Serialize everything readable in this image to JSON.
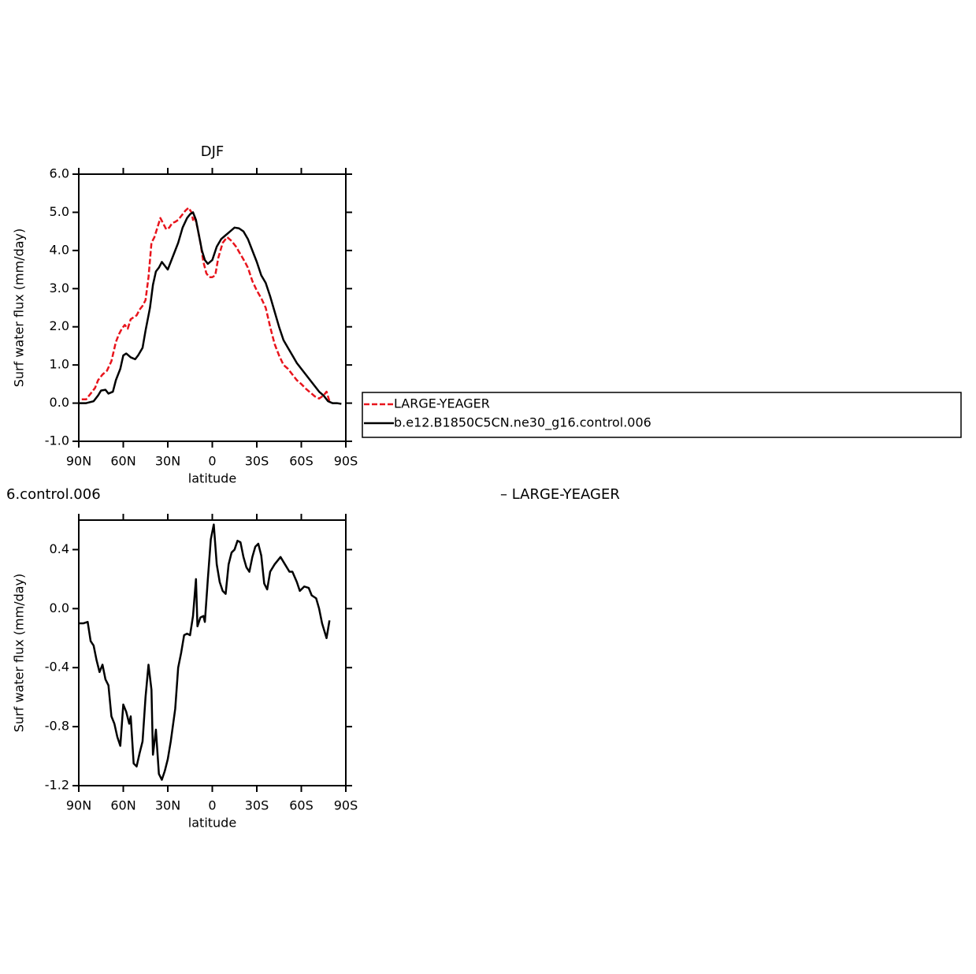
{
  "chart_data": [
    {
      "type": "line",
      "title": "DJF",
      "xlabel": "latitude",
      "ylabel": "Surf water flux (mm/day)",
      "xlim": [
        90,
        -90
      ],
      "ylim": [
        -1,
        6
      ],
      "xticks": [
        {
          "value": 90,
          "label": "90N"
        },
        {
          "value": 60,
          "label": "60N"
        },
        {
          "value": 30,
          "label": "30N"
        },
        0,
        {
          "value": -30,
          "label": "30S"
        },
        {
          "value": -60,
          "label": "60S"
        },
        {
          "value": -90,
          "label": "90S"
        }
      ],
      "yticks": [
        {
          "value": -1,
          "label": "-1.0"
        },
        {
          "value": 0,
          "label": "0.0"
        },
        {
          "value": 1,
          "label": "1.0"
        },
        {
          "value": 2,
          "label": "2.0"
        },
        {
          "value": 3,
          "label": "3.0"
        },
        {
          "value": 4,
          "label": "4.0"
        },
        {
          "value": 5,
          "label": "5.0"
        },
        {
          "value": 6,
          "label": "6.0"
        }
      ],
      "legend": "right",
      "series": [
        {
          "name": "LARGE-YEAGER",
          "color": "#e8141c",
          "dash": true,
          "x": [
            88,
            85,
            82,
            79,
            77,
            74,
            71,
            68,
            65,
            63,
            61,
            59,
            57,
            55,
            53,
            51,
            49,
            47,
            45,
            43,
            41,
            39,
            37,
            35,
            33,
            31,
            29,
            27,
            25,
            23,
            20,
            18,
            16,
            14,
            13,
            12,
            10,
            8,
            6,
            4,
            2,
            0,
            -2,
            -4,
            -7,
            -10,
            -13,
            -16,
            -19,
            -22,
            -24,
            -27,
            -30,
            -33,
            -36,
            -39,
            -42,
            -45,
            -48,
            -51,
            -54,
            -57,
            -60,
            -63,
            -66,
            -69,
            -72,
            -75,
            -77,
            -79
          ],
          "values": [
            0.1,
            0.1,
            0.25,
            0.4,
            0.6,
            0.75,
            0.85,
            1.1,
            1.6,
            1.8,
            1.95,
            2.05,
            1.95,
            2.2,
            2.25,
            2.3,
            2.45,
            2.55,
            2.7,
            3.3,
            4.2,
            4.35,
            4.6,
            4.85,
            4.7,
            4.55,
            4.6,
            4.72,
            4.75,
            4.8,
            4.95,
            5.05,
            5.12,
            5.0,
            4.8,
            4.9,
            4.6,
            4.2,
            3.7,
            3.4,
            3.3,
            3.3,
            3.35,
            3.8,
            4.2,
            4.35,
            4.25,
            4.1,
            3.9,
            3.7,
            3.55,
            3.2,
            2.95,
            2.75,
            2.5,
            2.0,
            1.55,
            1.25,
            1.0,
            0.9,
            0.75,
            0.6,
            0.5,
            0.38,
            0.28,
            0.18,
            0.12,
            0.2,
            0.3,
            0.05
          ]
        },
        {
          "name": "b.e12.B1850C5CN.ne30_g16.control.006",
          "color": "#000000",
          "dash": false,
          "x": [
            90,
            85,
            80,
            77,
            75,
            72,
            70,
            67,
            65,
            62,
            60,
            58,
            55,
            52,
            50,
            47,
            45,
            42,
            40,
            38,
            36,
            34,
            32,
            30,
            28,
            25,
            23,
            20,
            17,
            15,
            13,
            11,
            9,
            7,
            5,
            3,
            0,
            -3,
            -6,
            -9,
            -12,
            -15,
            -18,
            -21,
            -24,
            -27,
            -30,
            -33,
            -36,
            -39,
            -42,
            -45,
            -48,
            -51,
            -54,
            -57,
            -60,
            -63,
            -66,
            -69,
            -72,
            -75,
            -78,
            -81,
            -84,
            -87
          ],
          "values": [
            0,
            0,
            0.05,
            0.2,
            0.33,
            0.35,
            0.25,
            0.3,
            0.6,
            0.9,
            1.25,
            1.3,
            1.2,
            1.15,
            1.25,
            1.45,
            1.9,
            2.5,
            3.1,
            3.45,
            3.55,
            3.7,
            3.6,
            3.5,
            3.7,
            4.0,
            4.2,
            4.6,
            4.85,
            4.95,
            5.0,
            4.8,
            4.4,
            4.0,
            3.75,
            3.65,
            3.75,
            4.1,
            4.3,
            4.4,
            4.5,
            4.6,
            4.58,
            4.5,
            4.3,
            4.0,
            3.7,
            3.35,
            3.15,
            2.8,
            2.4,
            2.0,
            1.65,
            1.45,
            1.25,
            1.05,
            0.9,
            0.75,
            0.6,
            0.45,
            0.3,
            0.2,
            0.05,
            0,
            0,
            -0.02
          ]
        }
      ]
    },
    {
      "type": "line",
      "title_parts": [
        "6.control.006",
        "– LARGE-YEAGER"
      ],
      "xlabel": "latitude",
      "ylabel": "Surf water flux (mm/day)",
      "xlim": [
        90,
        -90
      ],
      "ylim": [
        -1.2,
        0.6
      ],
      "xticks": [
        {
          "value": 90,
          "label": "90N"
        },
        {
          "value": 60,
          "label": "60N"
        },
        {
          "value": 30,
          "label": "30N"
        },
        0,
        {
          "value": -30,
          "label": "30S"
        },
        {
          "value": -60,
          "label": "60S"
        },
        {
          "value": -90,
          "label": "90S"
        }
      ],
      "yticks": [
        -1.2,
        -0.8,
        -0.4,
        {
          "value": 0,
          "label": "0.0"
        },
        0.4
      ],
      "series": [
        {
          "color": "#000000",
          "dash": false,
          "x": [
            90,
            87,
            84,
            82,
            80,
            78,
            76,
            74,
            72,
            70,
            68,
            66,
            64,
            62,
            60,
            58,
            56,
            55,
            53,
            51,
            49,
            47,
            45,
            43,
            41,
            40,
            38,
            36,
            34,
            32,
            30,
            28,
            25,
            23,
            21,
            19,
            17,
            15,
            13,
            11,
            10,
            8,
            6,
            5,
            3,
            1,
            -1,
            -3,
            -5,
            -7,
            -9,
            -11,
            -13,
            -15,
            -17,
            -19,
            -21,
            -23,
            -25,
            -27,
            -29,
            -31,
            -33,
            -35,
            -37,
            -39,
            -42,
            -46,
            -49,
            -52,
            -54,
            -57,
            -59,
            -62,
            -65,
            -67,
            -70,
            -72,
            -74,
            -77,
            -79
          ],
          "values": [
            -0.1,
            -0.1,
            -0.09,
            -0.22,
            -0.25,
            -0.35,
            -0.43,
            -0.38,
            -0.48,
            -0.52,
            -0.73,
            -0.78,
            -0.87,
            -0.93,
            -0.65,
            -0.7,
            -0.78,
            -0.73,
            -1.05,
            -1.07,
            -0.98,
            -0.9,
            -0.6,
            -0.38,
            -0.55,
            -0.99,
            -0.82,
            -1.12,
            -1.16,
            -1.1,
            -1.02,
            -0.9,
            -0.68,
            -0.4,
            -0.3,
            -0.18,
            -0.17,
            -0.18,
            -0.05,
            0.2,
            -0.12,
            -0.06,
            -0.05,
            -0.09,
            0.2,
            0.47,
            0.57,
            0.3,
            0.18,
            0.12,
            0.1,
            0.3,
            0.38,
            0.4,
            0.46,
            0.45,
            0.35,
            0.28,
            0.25,
            0.35,
            0.42,
            0.44,
            0.36,
            0.17,
            0.13,
            0.25,
            0.3,
            0.35,
            0.3,
            0.25,
            0.25,
            0.18,
            0.12,
            0.15,
            0.14,
            0.09,
            0.07,
            0,
            -0.1,
            -0.2,
            -0.08
          ]
        }
      ]
    }
  ]
}
